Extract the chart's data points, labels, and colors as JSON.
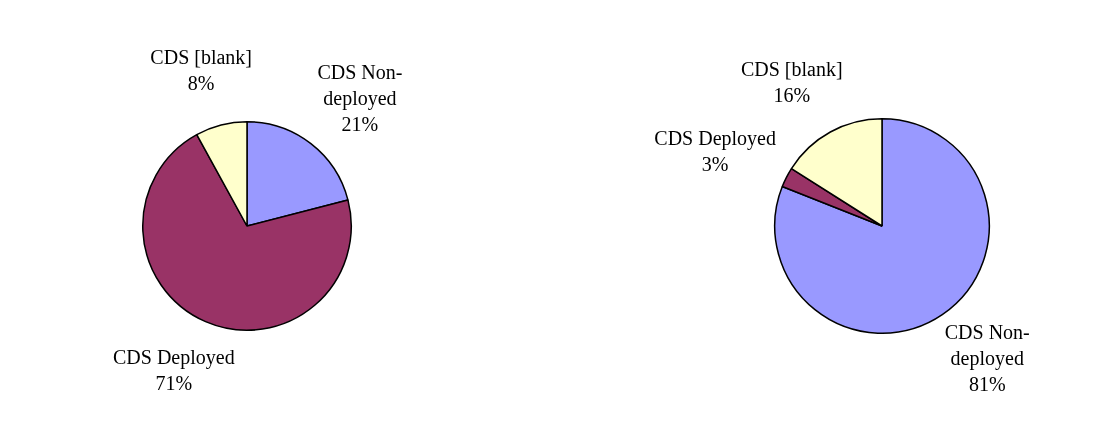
{
  "chart_data": [
    {
      "type": "pie",
      "categories": [
        "CDS Non-deployed",
        "CDS Deployed",
        "CDS [blank]"
      ],
      "values": [
        21,
        71,
        8
      ],
      "colors": [
        "#9999ff",
        "#993366",
        "#ffffcc"
      ],
      "value_labels": [
        "21%",
        "71%",
        "8%"
      ]
    },
    {
      "type": "pie",
      "categories": [
        "CDS Non-deployed",
        "CDS Deployed",
        "CDS [blank]"
      ],
      "values": [
        81,
        3,
        16
      ],
      "colors": [
        "#9999ff",
        "#993366",
        "#ffffcc"
      ],
      "value_labels": [
        "81%",
        "3%",
        "16%"
      ]
    }
  ]
}
